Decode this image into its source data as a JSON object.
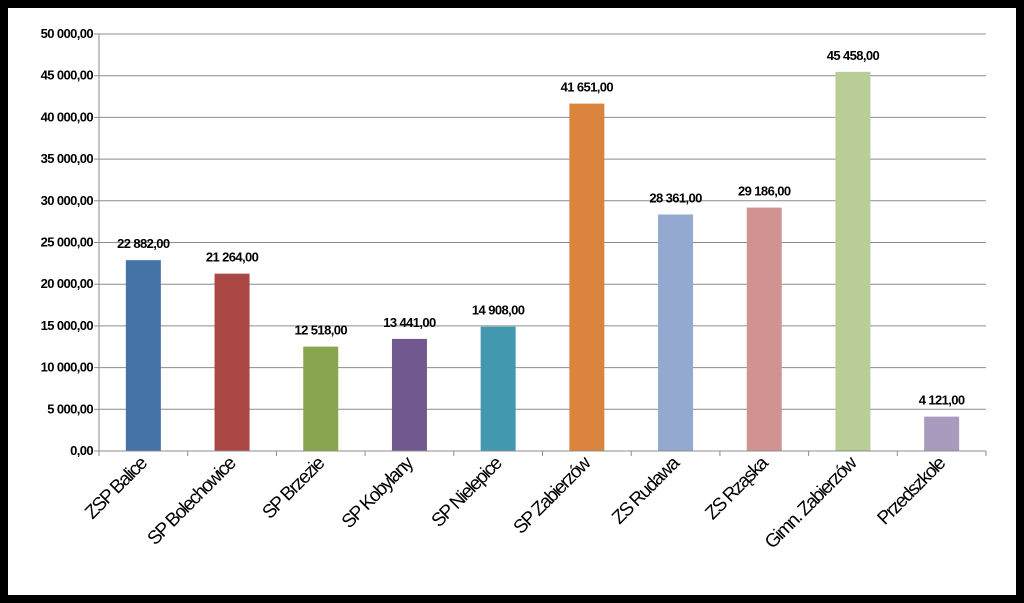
{
  "chart_data": {
    "type": "bar",
    "title": "",
    "xlabel": "",
    "ylabel": "",
    "ylim": [
      0,
      50000
    ],
    "y_ticks": [
      "0,00",
      "5 000,00",
      "10 000,00",
      "15 000,00",
      "20 000,00",
      "25 000,00",
      "30 000,00",
      "35 000,00",
      "40 000,00",
      "45 000,00",
      "50 000,00"
    ],
    "grid": true,
    "legend": "none",
    "categories": [
      "ZSP Balice",
      "SP Bolechowice",
      "SP Brzezie",
      "SP Kobylany",
      "SP Nielepice",
      "SP Zabierzów",
      "ZS Rudawa",
      "ZS Rząska",
      "Gimn. Zabierzów",
      "Przedszkole"
    ],
    "values": [
      22882,
      21264,
      12518,
      13441,
      14908,
      41651,
      28361,
      29186,
      45458,
      4121
    ],
    "value_labels": [
      "22 882,00",
      "21 264,00",
      "12 518,00",
      "13 441,00",
      "14 908,00",
      "41 651,00",
      "28 361,00",
      "29 186,00",
      "45 458,00",
      "4 121,00"
    ],
    "colors": [
      "#4572a7",
      "#aa4643",
      "#89a54e",
      "#71588f",
      "#4198af",
      "#db843d",
      "#93a9cf",
      "#d19392",
      "#b9cd96",
      "#a99bbd"
    ]
  }
}
